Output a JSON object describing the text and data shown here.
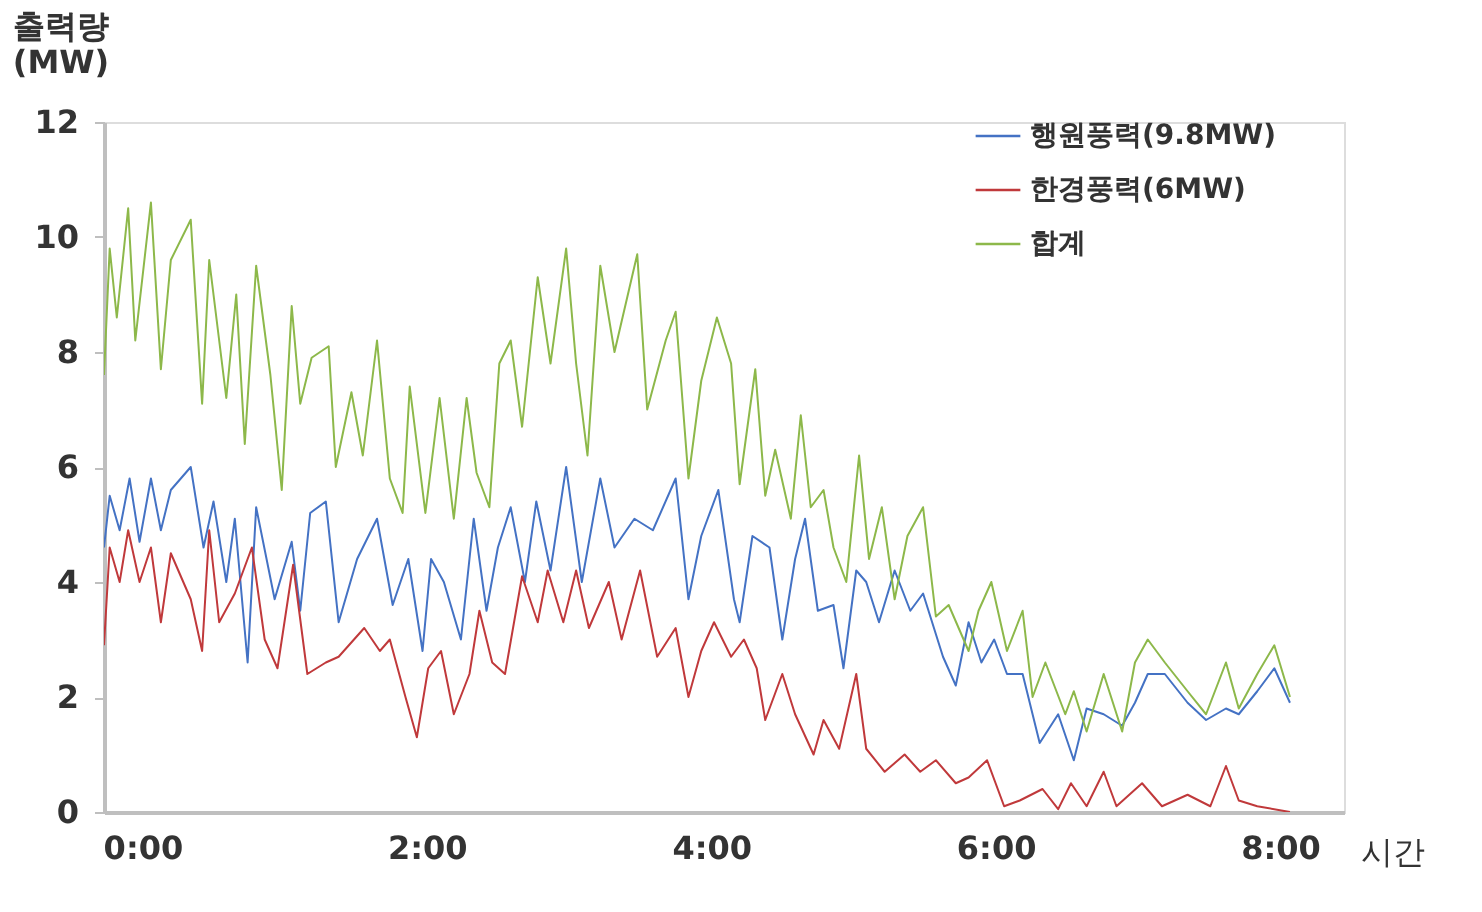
{
  "chart_data": {
    "type": "line",
    "xlabel": "시간",
    "ylabel": "출력량\n(MW)",
    "xlim": [
      -0.27,
      8.45
    ],
    "xticks": [
      {
        "value": 0,
        "label": "0:00"
      },
      {
        "value": 2,
        "label": "2:00"
      },
      {
        "value": 4,
        "label": "4:00"
      },
      {
        "value": 6,
        "label": "6:00"
      },
      {
        "value": 8,
        "label": "8:00"
      }
    ],
    "ylim": [
      0,
      12
    ],
    "yticks": [
      0,
      2,
      4,
      6,
      8,
      10,
      12
    ],
    "grid": false,
    "legend": "top right",
    "marker": "none",
    "line_style": "solid",
    "series": [
      {
        "name": "행원풍력(9.8MW)",
        "color": "#4472c4",
        "x": [
          -0.27,
          -0.23,
          -0.16,
          -0.09,
          -0.02,
          0.06,
          0.13,
          0.2,
          0.34,
          0.43,
          0.5,
          0.59,
          0.65,
          0.74,
          0.8,
          0.93,
          1.05,
          1.11,
          1.18,
          1.29,
          1.38,
          1.51,
          1.65,
          1.76,
          1.87,
          1.97,
          2.03,
          2.12,
          2.24,
          2.33,
          2.42,
          2.5,
          2.59,
          2.69,
          2.77,
          2.87,
          2.98,
          3.09,
          3.22,
          3.32,
          3.46,
          3.59,
          3.75,
          3.84,
          3.93,
          4.05,
          4.16,
          4.2,
          4.29,
          4.41,
          4.5,
          4.59,
          4.66,
          4.75,
          4.86,
          4.93,
          5.02,
          5.09,
          5.18,
          5.29,
          5.4,
          5.49,
          5.63,
          5.72,
          5.81,
          5.9,
          5.99,
          6.08,
          6.19,
          6.31,
          6.44,
          6.55,
          6.64,
          6.76,
          6.89,
          6.98,
          7.07,
          7.19,
          7.35,
          7.48,
          7.62,
          7.71,
          7.84,
          7.96,
          8.07
        ],
        "values": [
          4.6,
          5.5,
          4.9,
          5.8,
          4.7,
          5.8,
          4.9,
          5.6,
          6.0,
          4.6,
          5.4,
          4.0,
          5.1,
          2.6,
          5.3,
          3.7,
          4.7,
          3.5,
          5.2,
          5.4,
          3.3,
          4.4,
          5.1,
          3.6,
          4.4,
          2.8,
          4.4,
          4.0,
          3.0,
          5.1,
          3.5,
          4.6,
          5.3,
          4.0,
          5.4,
          4.2,
          6.0,
          4.0,
          5.8,
          4.6,
          5.1,
          4.9,
          5.8,
          3.7,
          4.8,
          5.6,
          3.7,
          3.3,
          4.8,
          4.6,
          3.0,
          4.4,
          5.1,
          3.5,
          3.6,
          2.5,
          4.2,
          4.0,
          3.3,
          4.2,
          3.5,
          3.8,
          2.7,
          2.2,
          3.3,
          2.6,
          3.0,
          2.4,
          2.4,
          1.2,
          1.7,
          0.9,
          1.8,
          1.7,
          1.5,
          1.9,
          2.4,
          2.4,
          1.9,
          1.6,
          1.8,
          1.7,
          2.1,
          2.5,
          1.9
        ]
      },
      {
        "name": "한경풍력(6MW)",
        "color": "#c0393b",
        "x": [
          -0.27,
          -0.23,
          -0.16,
          -0.1,
          -0.02,
          0.06,
          0.13,
          0.2,
          0.34,
          0.42,
          0.47,
          0.54,
          0.65,
          0.77,
          0.86,
          0.95,
          1.06,
          1.16,
          1.29,
          1.38,
          1.56,
          1.67,
          1.74,
          1.85,
          1.93,
          2.01,
          2.1,
          2.19,
          2.3,
          2.37,
          2.46,
          2.55,
          2.67,
          2.78,
          2.85,
          2.96,
          3.05,
          3.14,
          3.28,
          3.37,
          3.5,
          3.62,
          3.75,
          3.84,
          3.93,
          4.02,
          4.14,
          4.23,
          4.32,
          4.38,
          4.5,
          4.59,
          4.72,
          4.79,
          4.9,
          5.02,
          5.09,
          5.22,
          5.36,
          5.47,
          5.58,
          5.72,
          5.81,
          5.94,
          6.06,
          6.17,
          6.33,
          6.44,
          6.53,
          6.64,
          6.76,
          6.85,
          7.03,
          7.17,
          7.35,
          7.51,
          7.62,
          7.71,
          7.84,
          8.07
        ],
        "values": [
          2.9,
          4.6,
          4.0,
          4.9,
          4.0,
          4.6,
          3.3,
          4.5,
          3.7,
          2.8,
          4.9,
          3.3,
          3.8,
          4.6,
          3.0,
          2.5,
          4.3,
          2.4,
          2.6,
          2.7,
          3.2,
          2.8,
          3.0,
          2.0,
          1.3,
          2.5,
          2.8,
          1.7,
          2.4,
          3.5,
          2.6,
          2.4,
          4.1,
          3.3,
          4.2,
          3.3,
          4.2,
          3.2,
          4.0,
          3.0,
          4.2,
          2.7,
          3.2,
          2.0,
          2.8,
          3.3,
          2.7,
          3.0,
          2.5,
          1.6,
          2.4,
          1.7,
          1.0,
          1.6,
          1.1,
          2.4,
          1.1,
          0.7,
          1.0,
          0.7,
          0.9,
          0.5,
          0.6,
          0.9,
          0.1,
          0.2,
          0.4,
          0.05,
          0.5,
          0.1,
          0.7,
          0.1,
          0.5,
          0.1,
          0.3,
          0.1,
          0.8,
          0.2,
          0.1,
          0.0
        ]
      },
      {
        "name": "합계",
        "color": "#8db84a",
        "x": [
          -0.27,
          -0.23,
          -0.18,
          -0.1,
          -0.05,
          0.06,
          0.13,
          0.2,
          0.34,
          0.42,
          0.47,
          0.59,
          0.66,
          0.72,
          0.8,
          0.9,
          0.98,
          1.05,
          1.11,
          1.19,
          1.31,
          1.36,
          1.47,
          1.55,
          1.65,
          1.74,
          1.83,
          1.88,
          1.99,
          2.09,
          2.19,
          2.28,
          2.35,
          2.44,
          2.51,
          2.59,
          2.67,
          2.78,
          2.87,
          2.98,
          3.05,
          3.13,
          3.22,
          3.32,
          3.48,
          3.55,
          3.68,
          3.75,
          3.84,
          3.93,
          4.04,
          4.14,
          4.2,
          4.31,
          4.38,
          4.45,
          4.56,
          4.63,
          4.7,
          4.79,
          4.86,
          4.95,
          5.04,
          5.11,
          5.2,
          5.29,
          5.38,
          5.49,
          5.58,
          5.67,
          5.81,
          5.88,
          5.97,
          6.08,
          6.19,
          6.26,
          6.35,
          6.49,
          6.55,
          6.64,
          6.76,
          6.89,
          6.98,
          7.07,
          7.19,
          7.35,
          7.48,
          7.62,
          7.71,
          7.84,
          7.96,
          8.07
        ],
        "values": [
          7.6,
          9.8,
          8.6,
          10.5,
          8.2,
          10.6,
          7.7,
          9.6,
          10.3,
          7.1,
          9.6,
          7.2,
          9.0,
          6.4,
          9.5,
          7.6,
          5.6,
          8.8,
          7.1,
          7.9,
          8.1,
          6.0,
          7.3,
          6.2,
          8.2,
          5.8,
          5.2,
          7.4,
          5.2,
          7.2,
          5.1,
          7.2,
          5.9,
          5.3,
          7.8,
          8.2,
          6.7,
          9.3,
          7.8,
          9.8,
          7.8,
          6.2,
          9.5,
          8.0,
          9.7,
          7.0,
          8.2,
          8.7,
          5.8,
          7.5,
          8.6,
          7.8,
          5.7,
          7.7,
          5.5,
          6.3,
          5.1,
          6.9,
          5.3,
          5.6,
          4.6,
          4.0,
          6.2,
          4.4,
          5.3,
          3.7,
          4.8,
          5.3,
          3.4,
          3.6,
          2.8,
          3.5,
          4.0,
          2.8,
          3.5,
          2.0,
          2.6,
          1.7,
          2.1,
          1.4,
          2.4,
          1.4,
          2.6,
          3.0,
          2.6,
          2.1,
          1.7,
          2.6,
          1.8,
          2.4,
          2.9,
          2.0
        ]
      }
    ]
  }
}
